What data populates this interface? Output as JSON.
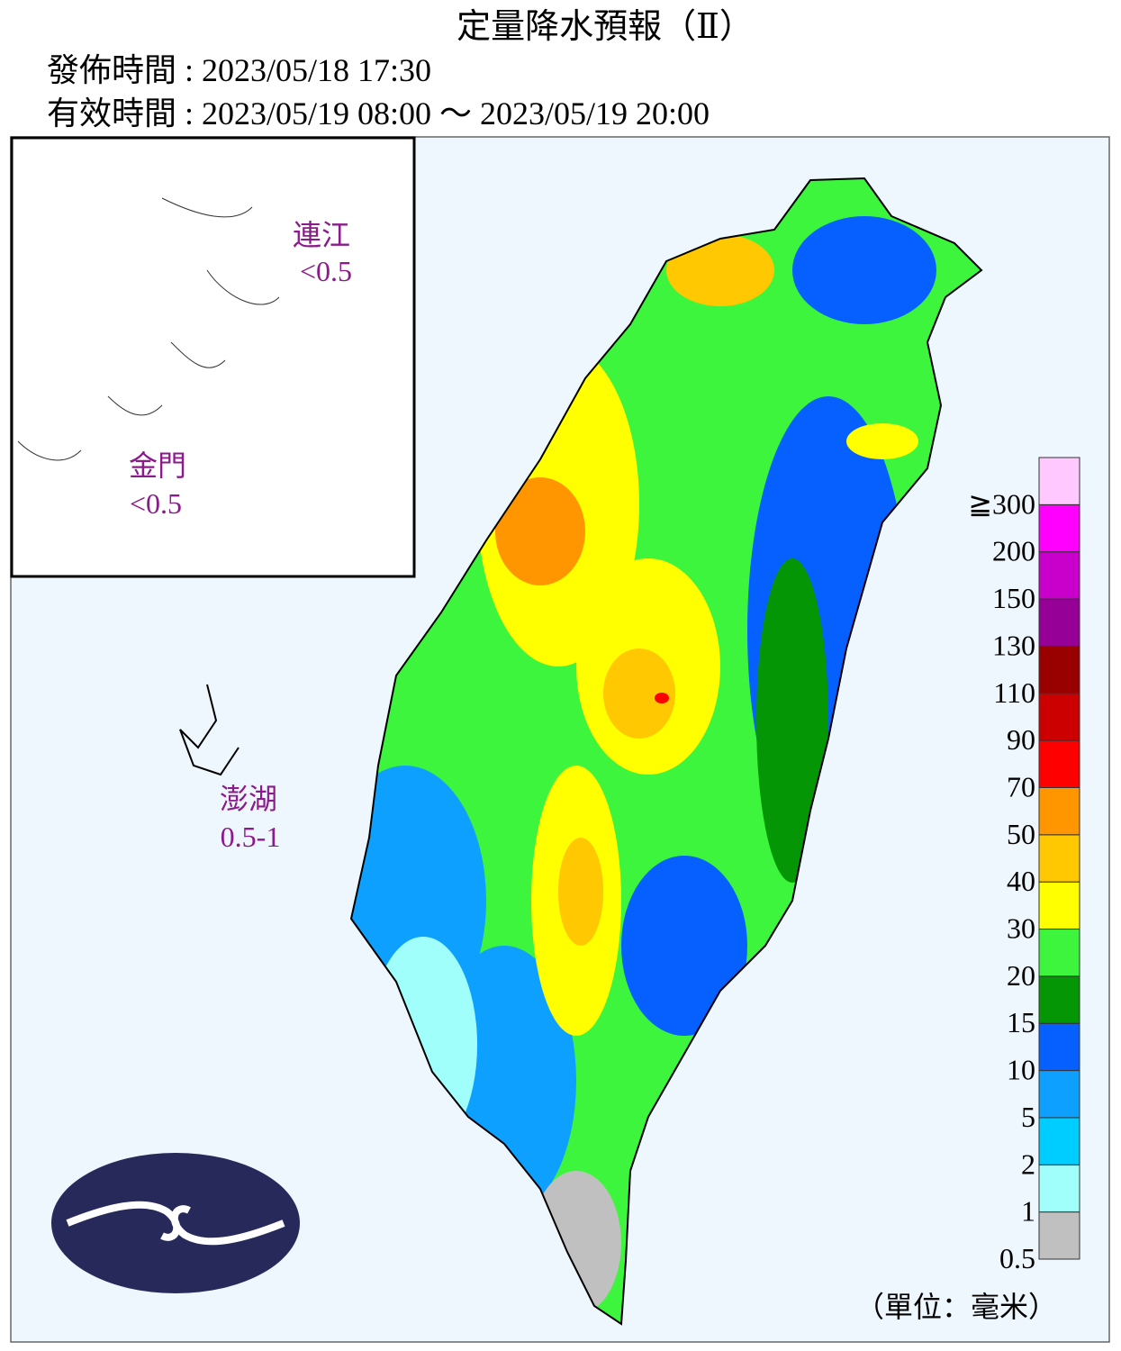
{
  "header": {
    "title": "定量降水預報（Ⅱ）",
    "issued": "發佈時間 : 2023/05/18 17:30",
    "valid": "有效時間 : 2023/05/19 08:00 ～ 2023/05/19 20:00"
  },
  "islands": [
    {
      "name": "連江",
      "value": "<0.5"
    },
    {
      "name": "金門",
      "value": "<0.5"
    },
    {
      "name": "澎湖",
      "value": "0.5-1"
    }
  ],
  "legend": {
    "levels": [
      {
        "label": "0.5",
        "color": "#c0c0c0"
      },
      {
        "label": "1",
        "color": "#a0fffa"
      },
      {
        "label": "2",
        "color": "#00cdff"
      },
      {
        "label": "5",
        "color": "#0da0ff"
      },
      {
        "label": "10",
        "color": "#0660ff"
      },
      {
        "label": "15",
        "color": "#059605"
      },
      {
        "label": "20",
        "color": "#3cf53c"
      },
      {
        "label": "30",
        "color": "#ffff00"
      },
      {
        "label": "40",
        "color": "#ffc800"
      },
      {
        "label": "50",
        "color": "#ff9600"
      },
      {
        "label": "70",
        "color": "#ff0000"
      },
      {
        "label": "90",
        "color": "#cc0000"
      },
      {
        "label": "110",
        "color": "#990000"
      },
      {
        "label": "130",
        "color": "#960096"
      },
      {
        "label": "150",
        "color": "#c900cc"
      },
      {
        "label": "200",
        "color": "#ff00ff"
      },
      {
        "label": "≧300",
        "color": "#ffc8ff"
      }
    ],
    "unit": "（單位：毫米）"
  }
}
